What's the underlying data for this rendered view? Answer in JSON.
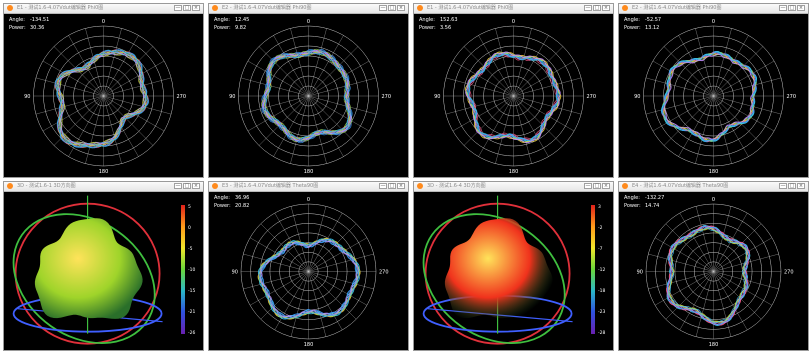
{
  "colors": {
    "series": [
      "#39c8e6",
      "#3fa0ff",
      "#ff5a8a",
      "#e2c23a",
      "#a6e15a",
      "#c38cff"
    ],
    "grid": "#c8c8c8"
  },
  "icons": {
    "window": "app-circle-icon",
    "minimize": "minimize-icon",
    "maximize": "maximize-icon",
    "close": "close-icon"
  },
  "readout_labels": {
    "angle": "Angle:",
    "power": "Power:"
  },
  "window_buttons": {
    "minimize": "—",
    "maximize": "□",
    "close": "×"
  },
  "polar_labels": {
    "top": "0",
    "left": "90",
    "right": "270",
    "bottom": "180"
  },
  "panes": [
    {
      "id": "p1",
      "kind": "polar",
      "title": "E1 - 测试1.6-4.07Vdut编辑器 Phi0图",
      "angle": "-134.51",
      "power": "30.36",
      "seed": 1
    },
    {
      "id": "p2",
      "kind": "polar",
      "title": "E2 - 测试1.6-4.07Vdut编辑器 Phi90图",
      "angle": "12.45",
      "power": "9.82",
      "seed": 2
    },
    {
      "id": "p3",
      "kind": "polar",
      "title": "E1 - 测试1.6-4.07Vdut编辑器 Phi0图",
      "angle": "152.63",
      "power": "3.56",
      "seed": 3
    },
    {
      "id": "p4",
      "kind": "polar",
      "title": "E2 - 测试1.6-4.07Vdut编辑器 Phi90图",
      "angle": "-52.57",
      "power": "13.12",
      "seed": 4
    },
    {
      "id": "p5",
      "kind": "3d",
      "title": "3D - 测试1.6-1 3D方向图",
      "scale": [
        "5",
        "0",
        "-5",
        "-10",
        "-15",
        "-21",
        "-26"
      ],
      "body": "#9fd42a"
    },
    {
      "id": "p6",
      "kind": "polar",
      "title": "E3 - 测试1.6-4.07Vdut编辑器 Theta90图",
      "angle": "36.96",
      "power": "20.82",
      "seed": 5
    },
    {
      "id": "p7",
      "kind": "3d",
      "title": "3D - 测试1.6-4 3D方向图",
      "scale": [
        "3",
        "-2",
        "-7",
        "-12",
        "-18",
        "-23",
        "-28"
      ],
      "body": "#f0321c"
    },
    {
      "id": "p8",
      "kind": "polar",
      "title": "E4 - 测试1.6-4.07Vdut编辑器 Theta90图",
      "angle": "-132.27",
      "power": "14.74",
      "seed": 6
    }
  ]
}
